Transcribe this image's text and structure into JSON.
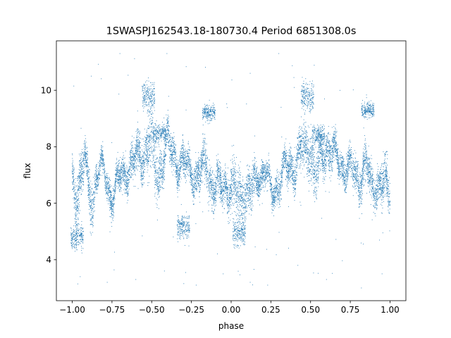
{
  "chart_data": {
    "type": "scatter",
    "title": "1SWASPJ162543.18-180730.4 Period 6851308.0s",
    "xlabel": "phase",
    "ylabel": "flux",
    "xlim": [
      -1.1,
      1.1
    ],
    "ylim": [
      2.55,
      11.75
    ],
    "xticks": [
      -1.0,
      -0.75,
      -0.5,
      -0.25,
      0.0,
      0.25,
      0.5,
      0.75,
      1.0
    ],
    "xtick_labels": [
      "−1.00",
      "−0.75",
      "−0.50",
      "−0.25",
      "0.00",
      "0.25",
      "0.50",
      "0.75",
      "1.00"
    ],
    "yticks": [
      4,
      6,
      8,
      10
    ],
    "ytick_labels": [
      "4",
      "6",
      "8",
      "10"
    ],
    "grid": false,
    "legend": "none",
    "color": "#1f77b4",
    "series": [
      {
        "profile": [
          [
            -1.0,
            6.8,
            0.6
          ],
          [
            -0.97,
            6.4,
            0.9
          ],
          [
            -0.95,
            6.8,
            0.9
          ],
          [
            -0.92,
            7.6,
            0.5
          ],
          [
            -0.9,
            6.4,
            0.7
          ],
          [
            -0.87,
            6.1,
            0.8
          ],
          [
            -0.85,
            7.1,
            0.4
          ],
          [
            -0.8,
            7.1,
            0.35
          ],
          [
            -0.77,
            6.5,
            0.5
          ],
          [
            -0.75,
            6.3,
            0.5
          ],
          [
            -0.7,
            6.8,
            0.5
          ],
          [
            -0.66,
            7.2,
            0.5
          ],
          [
            -0.6,
            7.5,
            0.6
          ],
          [
            -0.55,
            7.9,
            0.7
          ],
          [
            -0.5,
            8.1,
            0.9
          ],
          [
            -0.47,
            6.9,
            0.9
          ],
          [
            -0.43,
            7.5,
            0.6
          ],
          [
            -0.4,
            8.1,
            0.6
          ],
          [
            -0.35,
            7.6,
            0.5
          ],
          [
            -0.3,
            7.3,
            0.5
          ],
          [
            -0.25,
            7.2,
            0.5
          ],
          [
            -0.2,
            6.9,
            0.6
          ],
          [
            -0.15,
            7.5,
            0.7
          ],
          [
            -0.12,
            6.6,
            0.6
          ],
          [
            -0.08,
            6.5,
            0.6
          ],
          [
            -0.03,
            6.7,
            0.6
          ],
          [
            0.0,
            6.5,
            0.7
          ],
          [
            0.04,
            6.2,
            0.9
          ],
          [
            0.08,
            6.5,
            0.8
          ],
          [
            0.13,
            6.3,
            0.7
          ],
          [
            0.17,
            7.1,
            0.4
          ],
          [
            0.22,
            7.1,
            0.4
          ],
          [
            0.25,
            6.3,
            0.4
          ],
          [
            0.3,
            6.8,
            0.5
          ],
          [
            0.34,
            7.2,
            0.5
          ],
          [
            0.4,
            7.4,
            0.6
          ],
          [
            0.45,
            7.8,
            0.7
          ],
          [
            0.5,
            8.1,
            0.9
          ],
          [
            0.53,
            6.8,
            0.8
          ],
          [
            0.57,
            7.6,
            0.6
          ],
          [
            0.6,
            8.1,
            0.6
          ],
          [
            0.65,
            7.6,
            0.5
          ],
          [
            0.7,
            7.4,
            0.5
          ],
          [
            0.75,
            7.2,
            0.5
          ],
          [
            0.8,
            6.9,
            0.6
          ],
          [
            0.85,
            7.4,
            0.7
          ],
          [
            0.88,
            6.5,
            0.6
          ],
          [
            0.92,
            6.8,
            0.6
          ],
          [
            0.97,
            6.6,
            0.7
          ],
          [
            1.0,
            6.3,
            0.8
          ]
        ],
        "clumps": [
          [
            -0.52,
            9.8,
            0.5
          ],
          [
            0.48,
            9.8,
            0.5
          ],
          [
            -0.14,
            9.2,
            0.25
          ],
          [
            0.86,
            9.3,
            0.25
          ],
          [
            -0.45,
            8.5,
            0.3
          ],
          [
            0.55,
            8.4,
            0.3
          ],
          [
            -0.97,
            4.8,
            0.4
          ],
          [
            0.05,
            5.0,
            0.5
          ],
          [
            -0.3,
            5.2,
            0.4
          ]
        ],
        "outliers": [
          [
            -0.95,
            3.4
          ],
          [
            -0.78,
            3.2
          ],
          [
            -0.6,
            3.3
          ],
          [
            -0.42,
            3.6
          ],
          [
            -0.22,
            3.1
          ],
          [
            -0.05,
            3.5
          ],
          [
            0.12,
            3.2
          ],
          [
            0.23,
            3.1
          ],
          [
            0.42,
            3.8
          ],
          [
            0.6,
            3.3
          ],
          [
            0.82,
            3.0
          ],
          [
            0.95,
            3.5
          ],
          [
            -0.88,
            10.5
          ],
          [
            0.12,
            10.6
          ],
          [
            0.3,
            11.3
          ],
          [
            -0.7,
            11.3
          ]
        ]
      }
    ]
  }
}
